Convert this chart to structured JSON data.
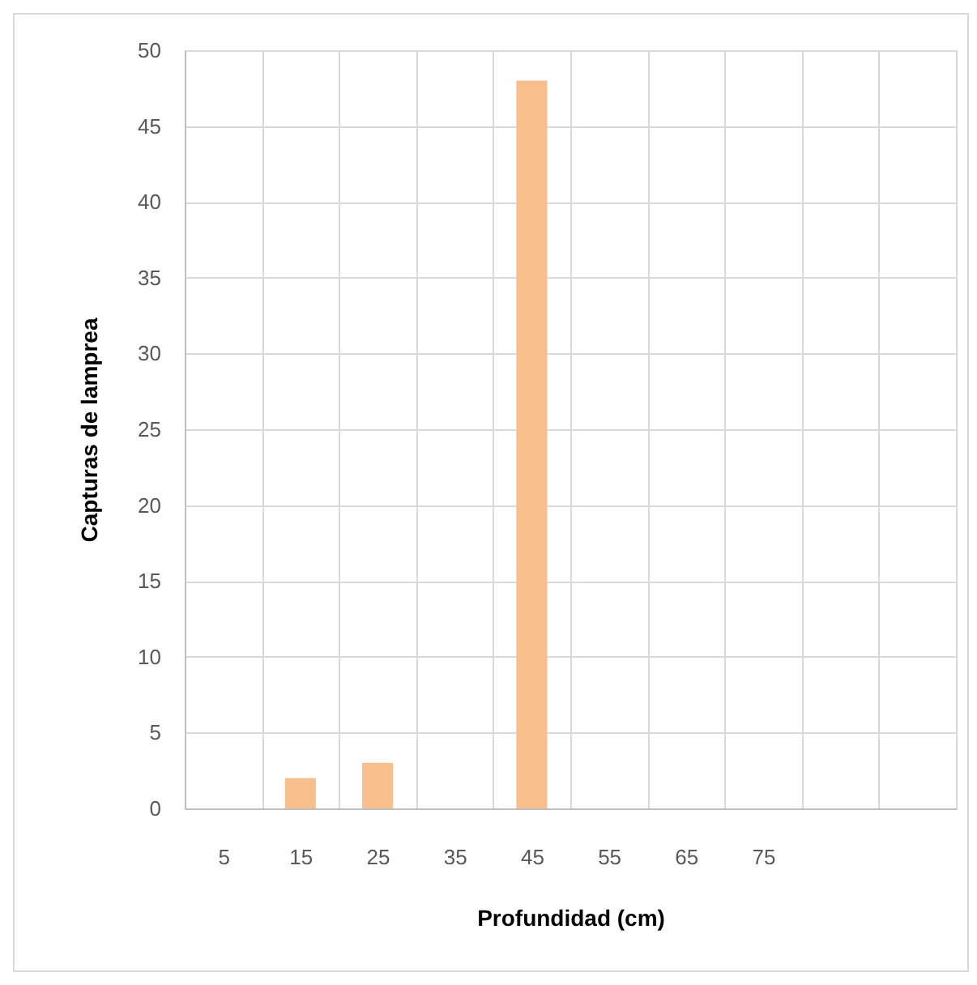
{
  "chart_data": {
    "type": "bar",
    "xlabel": "Profundidad (cm)",
    "ylabel": "Capturas de lamprea",
    "categories": [
      "5",
      "15",
      "25",
      "35",
      "45",
      "55",
      "65",
      "75",
      null,
      null
    ],
    "values": [
      0,
      2,
      3,
      0,
      48,
      0,
      0,
      0,
      0,
      0
    ],
    "color": "#f8bf8d",
    "ylim": [
      0,
      50
    ],
    "yticks": [
      0,
      5,
      10,
      15,
      20,
      25,
      30,
      35,
      40,
      45,
      50
    ],
    "grid": true
  }
}
